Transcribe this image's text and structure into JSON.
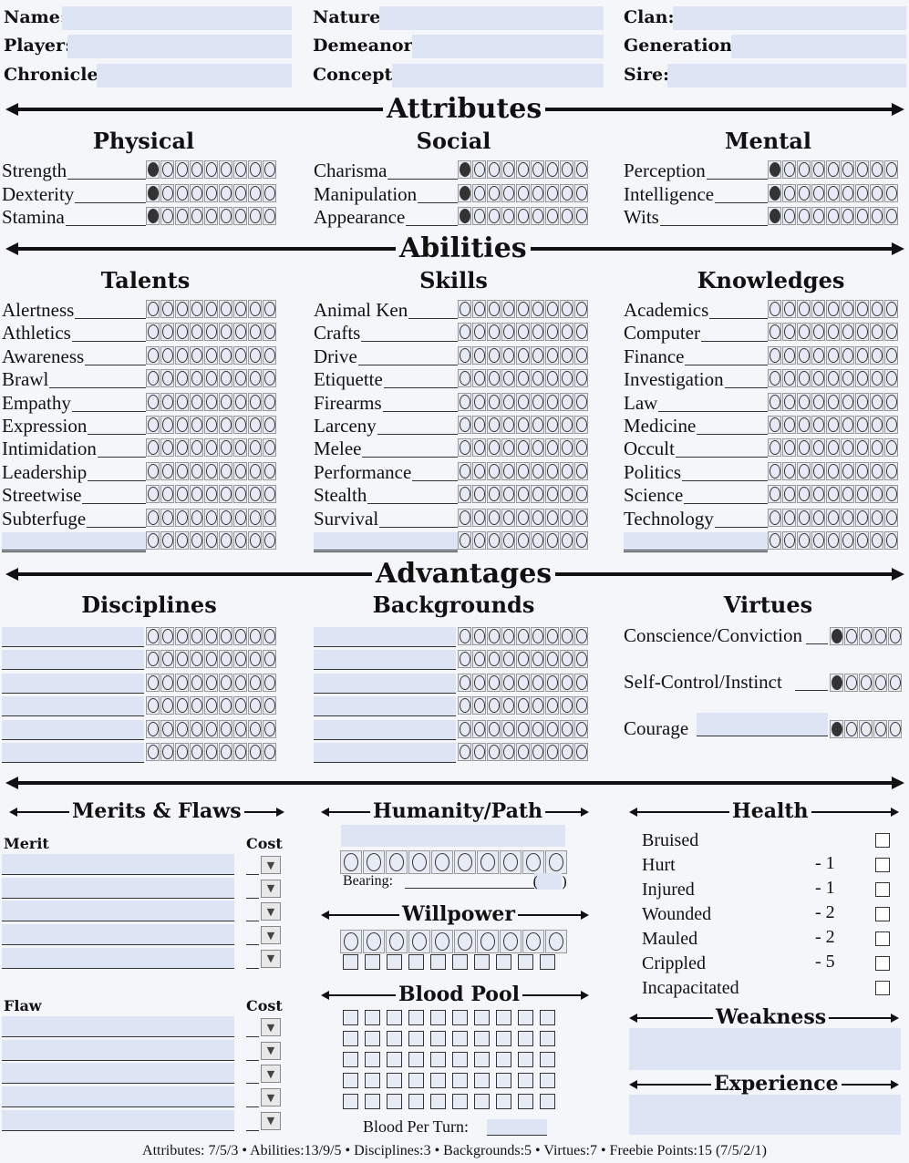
{
  "header": {
    "col1": [
      "Name:",
      "Player:",
      "Chronicle:"
    ],
    "col2": [
      "Nature:",
      "Demeanor:",
      "Concept:"
    ],
    "col3": [
      "Clan:",
      "Generation:",
      "Sire:"
    ]
  },
  "sections": {
    "attributes": "Attributes",
    "abilities": "Abilities",
    "advantages": "Advantages"
  },
  "attributes": {
    "physical": {
      "title": "Physical",
      "items": [
        "Strength",
        "Dexterity",
        "Stamina"
      ]
    },
    "social": {
      "title": "Social",
      "items": [
        "Charisma",
        "Manipulation",
        "Appearance"
      ]
    },
    "mental": {
      "title": "Mental",
      "items": [
        "Perception",
        "Intelligence",
        "Wits"
      ]
    }
  },
  "abilities": {
    "talents": {
      "title": "Talents",
      "items": [
        "Alertness",
        "Athletics",
        "Awareness",
        "Brawl",
        "Empathy",
        "Expression",
        "Intimidation",
        "Leadership",
        "Streetwise",
        "Subterfuge",
        ""
      ]
    },
    "skills": {
      "title": "Skills",
      "items": [
        "Animal Ken",
        "Crafts",
        "Drive",
        "Etiquette",
        "Firearms",
        "Larceny",
        "Melee",
        "Performance",
        "Stealth",
        "Survival",
        ""
      ]
    },
    "knowledges": {
      "title": "Knowledges",
      "items": [
        "Academics",
        "Computer",
        "Finance",
        "Investigation",
        "Law",
        "Medicine",
        "Occult",
        "Politics",
        "Science",
        "Technology",
        ""
      ]
    }
  },
  "advantages": {
    "disciplines": {
      "title": "Disciplines"
    },
    "backgrounds": {
      "title": "Backgrounds"
    },
    "virtues": {
      "title": "Virtues",
      "items": [
        "Conscience/Conviction",
        "Self-Control/Instinct",
        "Courage"
      ]
    }
  },
  "merits_flaws": {
    "title": "Merits & Flaws",
    "merit_label": "Merit",
    "flaw_label": "Flaw",
    "cost_label": "Cost"
  },
  "humanity": {
    "title": "Humanity/Path",
    "bearing_label": "Bearing:",
    "bearing_value": "("
  },
  "willpower": {
    "title": "Willpower"
  },
  "blood_pool": {
    "title": "Blood Pool",
    "per_turn_label": "Blood Per Turn:"
  },
  "health": {
    "title": "Health",
    "levels": [
      {
        "name": "Bruised",
        "penalty": ""
      },
      {
        "name": "Hurt",
        "penalty": "- 1"
      },
      {
        "name": "Injured",
        "penalty": "- 1"
      },
      {
        "name": "Wounded",
        "penalty": "- 2"
      },
      {
        "name": "Mauled",
        "penalty": "- 2"
      },
      {
        "name": "Crippled",
        "penalty": "- 5"
      },
      {
        "name": "Incapacitated",
        "penalty": ""
      }
    ]
  },
  "weakness": {
    "title": "Weakness"
  },
  "experience": {
    "title": "Experience"
  },
  "footer": "Attributes: 7/5/3 • Abilities:13/9/5 • Disciplines:3 • Backgrounds:5 • Virtues:7 • Freebie Points:15 (7/5/2/1)",
  "colors": {
    "field": "#dde4f3",
    "ink": "#111111"
  }
}
